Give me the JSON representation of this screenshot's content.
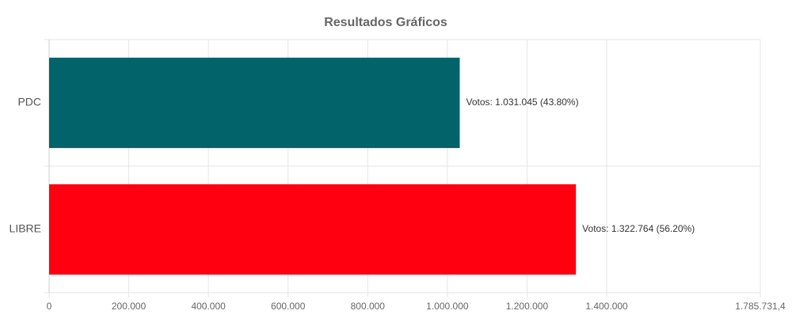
{
  "chart_data": {
    "type": "hbar",
    "title": "Resultados Gráficos",
    "categories": [
      "PDC",
      "LIBRE"
    ],
    "values": [
      1031045,
      1322764
    ],
    "value_labels": [
      "Votos: 1.031.045 (43.80%)",
      "Votos: 1.322.764 (56.20%)"
    ],
    "colors": [
      "#02636a",
      "#fe0010"
    ],
    "xlim": [
      0,
      1785731.4
    ],
    "xticks": [
      0,
      {
        "value": 200000,
        "label": "200.000"
      },
      {
        "value": 400000,
        "label": "400.000"
      },
      {
        "value": 600000,
        "label": "600.000"
      },
      {
        "value": 800000,
        "label": "800.000"
      },
      {
        "value": 1000000,
        "label": "1.000.000"
      },
      {
        "value": 1200000,
        "label": "1.200.000"
      },
      {
        "value": 1400000,
        "label": "1.400.000"
      },
      {
        "value": 1785731.4,
        "label": "1.785.731,4"
      }
    ],
    "grid": true
  }
}
